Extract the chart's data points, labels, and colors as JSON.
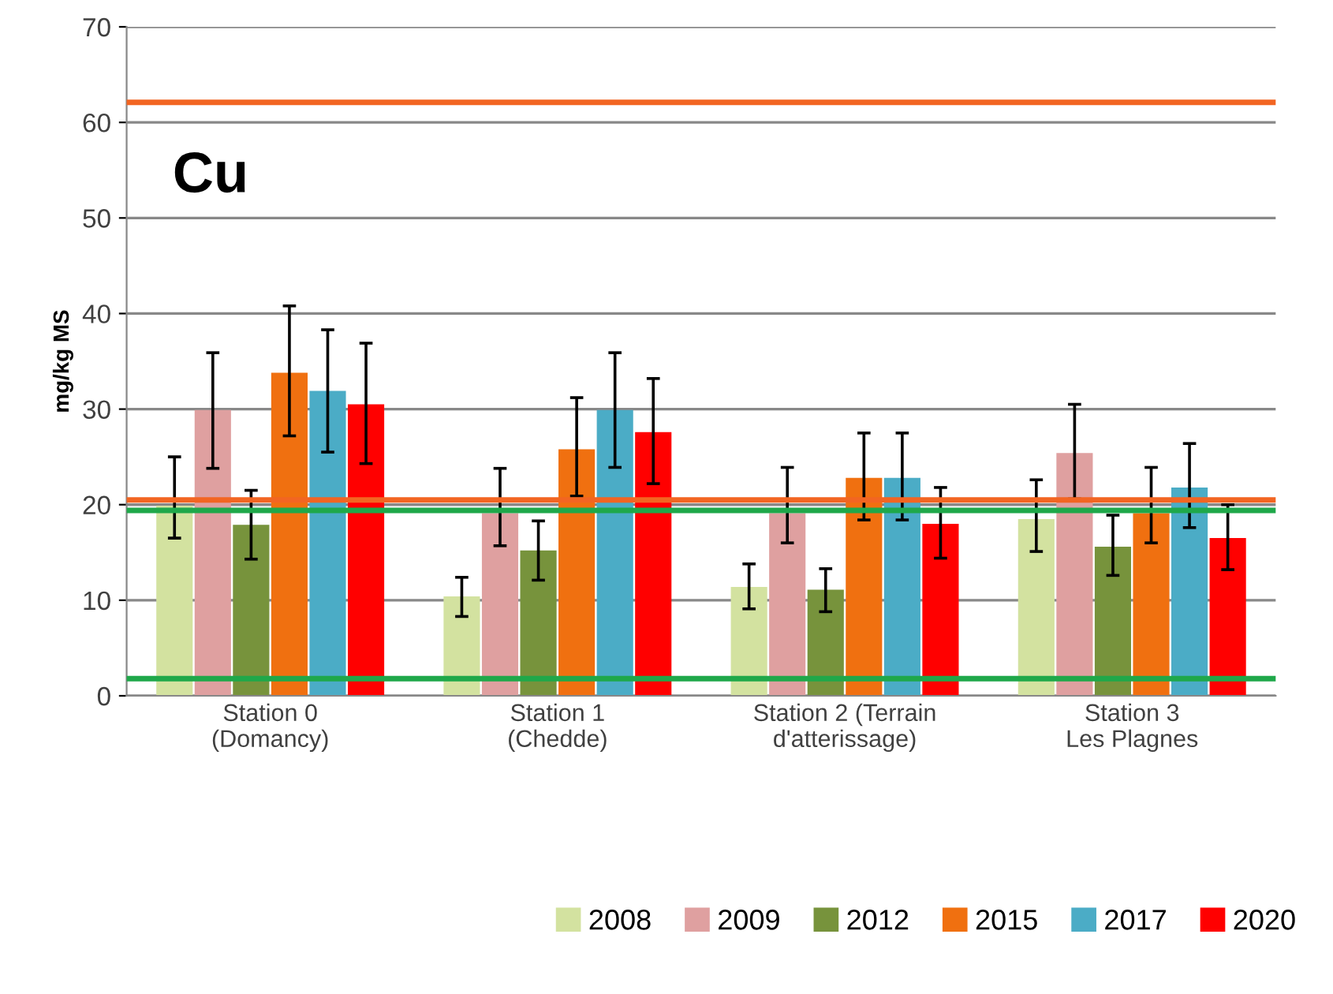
{
  "chart_data": {
    "type": "bar",
    "ylabel": "mg/kg MS",
    "annotations": [
      "Cu"
    ],
    "categories": [
      "Station 0\n(Domancy)",
      "Station 1\n(Chedde)",
      "Station 2 (Terrain\nd'atterissage)",
      "Station 3\nLes Plagnes"
    ],
    "series": [
      {
        "name": "2008",
        "color": "#d3e2a0",
        "values": [
          19.9,
          10.4,
          11.4,
          18.5
        ],
        "errors": [
          [
            16.5,
            25.0
          ],
          [
            8.3,
            12.4
          ],
          [
            9.1,
            13.8
          ],
          [
            15.1,
            22.6
          ]
        ]
      },
      {
        "name": "2009",
        "color": "#dfa0a0",
        "values": [
          29.9,
          19.1,
          19.1,
          25.4
        ],
        "errors": [
          [
            23.8,
            35.9
          ],
          [
            15.7,
            23.8
          ],
          [
            16.0,
            23.9
          ],
          [
            20.6,
            30.5
          ]
        ]
      },
      {
        "name": "2012",
        "color": "#77933c",
        "values": [
          17.9,
          15.2,
          11.1,
          15.6
        ],
        "errors": [
          [
            14.3,
            21.5
          ],
          [
            12.1,
            18.3
          ],
          [
            8.8,
            13.3
          ],
          [
            12.6,
            18.9
          ]
        ]
      },
      {
        "name": "2015",
        "color": "#f07010",
        "values": [
          33.8,
          25.8,
          22.8,
          19.1
        ],
        "errors": [
          [
            27.2,
            40.8
          ],
          [
            20.9,
            31.2
          ],
          [
            18.4,
            27.5
          ],
          [
            16.0,
            23.9
          ]
        ]
      },
      {
        "name": "2017",
        "color": "#4bacc6",
        "values": [
          31.9,
          29.9,
          22.8,
          21.8
        ],
        "errors": [
          [
            25.5,
            38.3
          ],
          [
            23.9,
            35.9
          ],
          [
            18.4,
            27.5
          ],
          [
            17.6,
            26.4
          ]
        ]
      },
      {
        "name": "2020",
        "color": "#ff0000",
        "values": [
          30.5,
          27.6,
          18.0,
          16.5
        ],
        "errors": [
          [
            24.3,
            36.9
          ],
          [
            22.2,
            33.2
          ],
          [
            14.4,
            21.8
          ],
          [
            13.2,
            20.0
          ]
        ]
      }
    ],
    "ref_lines": [
      {
        "axis": "y",
        "value": 62.1,
        "label": null,
        "color": "#f26522"
      },
      {
        "axis": "y",
        "value": 20.5,
        "label": null,
        "color": "#f26522"
      },
      {
        "axis": "y",
        "value": 19.4,
        "label": null,
        "color": "#1fa84a"
      },
      {
        "axis": "y",
        "value": 1.8,
        "label": null,
        "color": "#1fa84a"
      }
    ],
    "ylim": [
      0,
      70
    ],
    "yticks": [
      0,
      10,
      20,
      30,
      40,
      50,
      60,
      70
    ],
    "grid": "y",
    "legend": "bottom right"
  }
}
